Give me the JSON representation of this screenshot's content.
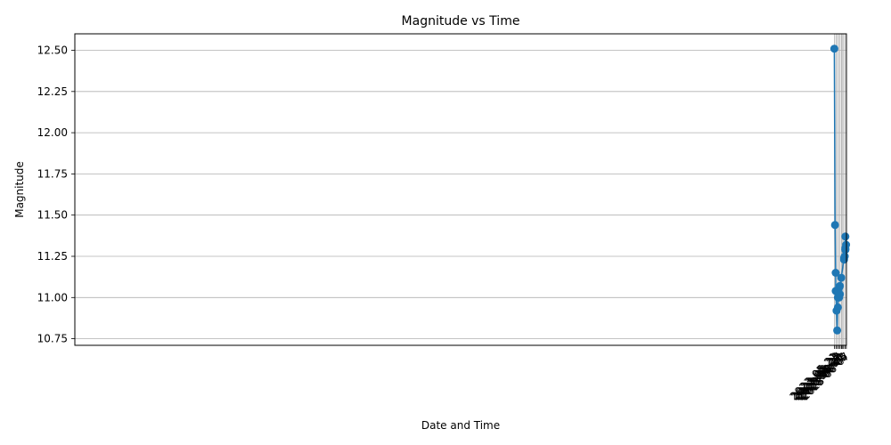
{
  "chart_data": {
    "type": "line",
    "title": "Magnitude vs Time",
    "xlabel": "Date and Time",
    "ylabel": "Magnitude",
    "grid": true,
    "x_axis_type": "date",
    "xlim": [
      "2020-05-20T10:00",
      "2023-06-07T04:00"
    ],
    "ylim": [
      10.71,
      12.6
    ],
    "x_ticks": [
      "2023-05-21",
      "2023-05-23",
      "2023-05-25",
      "2023-05-27",
      "2023-05-29",
      "2023-05-31",
      "2023-06-01",
      "2023-06-03",
      "2023-06-05",
      "2023-06-07"
    ],
    "y_ticks": [
      "10.75",
      "11.00",
      "11.25",
      "11.50",
      "11.75",
      "12.00",
      "12.25",
      "12.50"
    ],
    "series_color": "#1f77b4",
    "series": [
      {
        "x": [
          "2023-05-20T16:00",
          "2023-05-21T17:00",
          "2023-05-22T16:00",
          "2023-05-22T16:00",
          "2023-05-23T21:00",
          "2023-05-24T19:00",
          "2023-05-25T19:00",
          "2023-05-25T19:00",
          "2023-05-25T20:00",
          "2023-05-26T16:00",
          "2023-05-26T16:00",
          "2023-05-27T16:00",
          "2023-05-27T16:00",
          "2023-05-28T16:00",
          "2023-05-28T16:00",
          "2023-05-30T17:00",
          "2023-06-03T16:00",
          "2023-06-03T16:00",
          "2023-06-04T16:00",
          "2023-06-05T16:00",
          "2023-06-05T16:00",
          "2023-06-05T16:00",
          "2023-06-05T16:00",
          "2023-06-06T15:00"
        ],
        "values": [
          12.51,
          11.44,
          11.15,
          11.04,
          10.92,
          10.8,
          11.04,
          11.0,
          10.94,
          11.04,
          11.01,
          11.06,
          11.0,
          11.07,
          11.02,
          11.12,
          11.24,
          11.23,
          11.25,
          11.37,
          11.3,
          11.29,
          11.29,
          11.32
        ]
      }
    ]
  }
}
